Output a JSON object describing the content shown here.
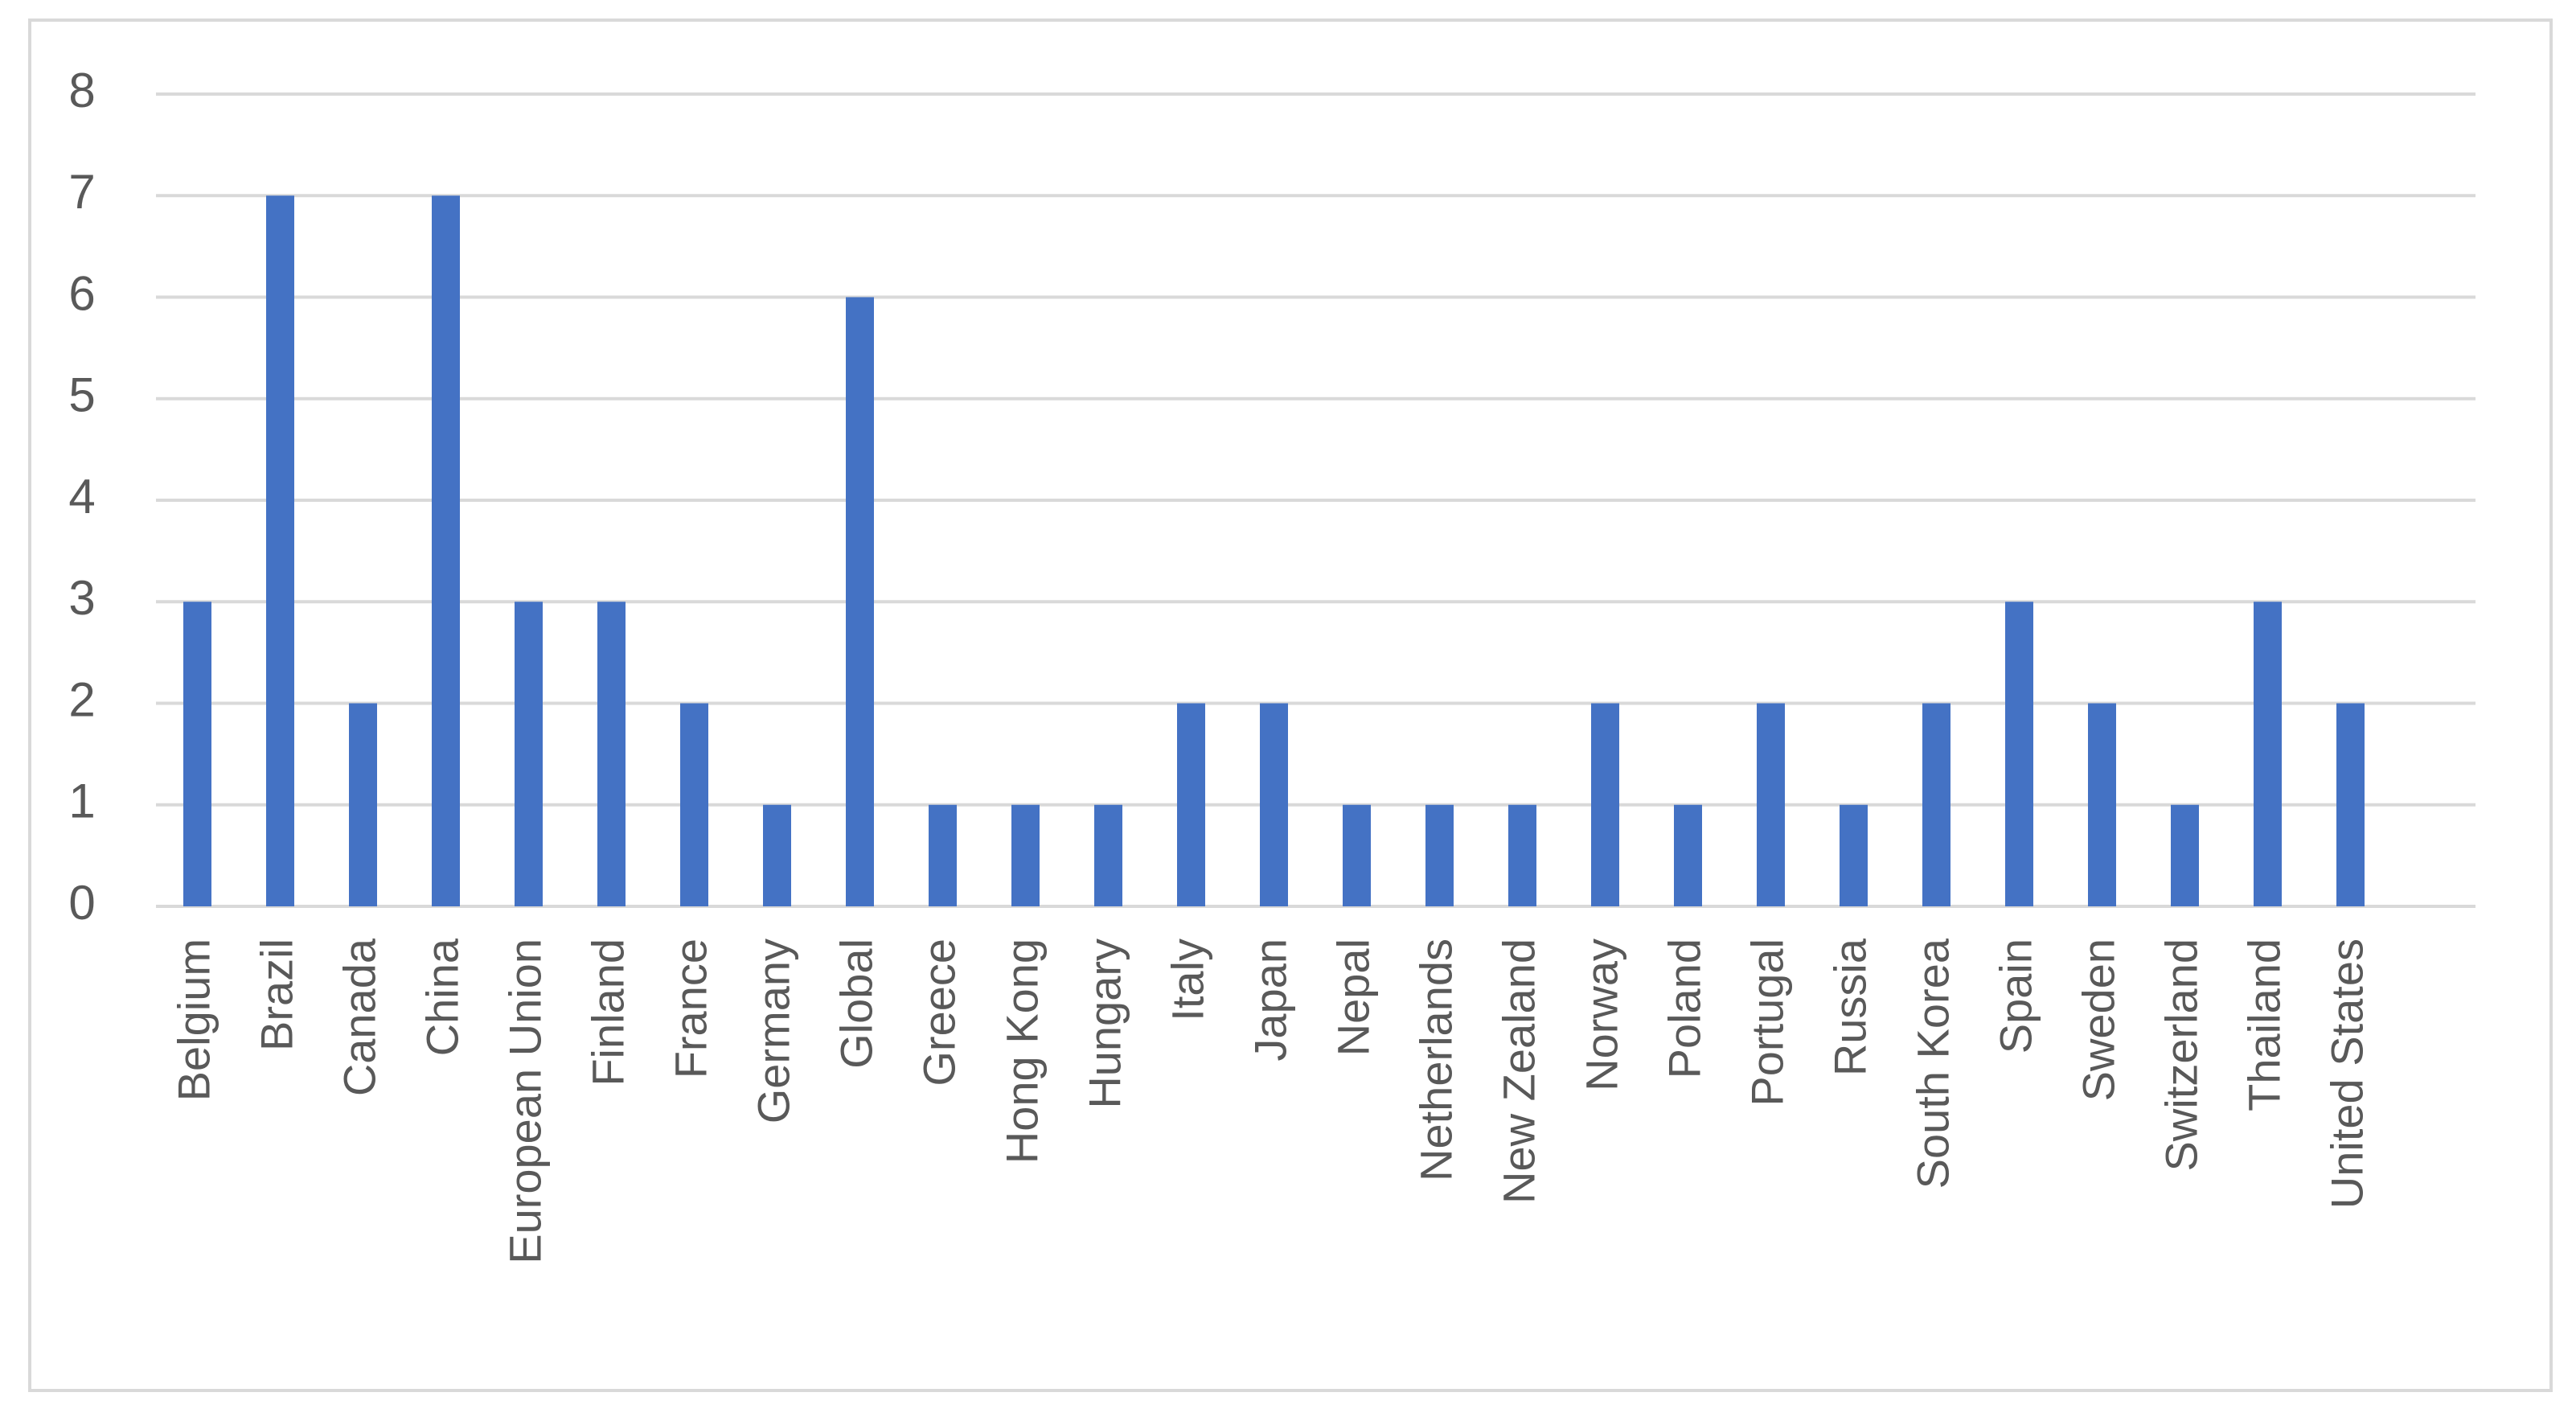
{
  "chart_data": {
    "type": "bar",
    "categories": [
      "Belgium",
      "Brazil",
      "Canada",
      "China",
      "European Union",
      "Finland",
      "France",
      "Germany",
      "Global",
      "Greece",
      "Hong Kong",
      "Hungary",
      "Italy",
      "Japan",
      "Nepal",
      "Netherlands",
      "New Zealand",
      "Norway",
      "Poland",
      "Portugal",
      "Russia",
      "South Korea",
      "Spain",
      "Sweden",
      "Switzerland",
      "Thailand",
      "United States"
    ],
    "values": [
      3,
      7,
      2,
      7,
      3,
      3,
      2,
      1,
      6,
      1,
      1,
      1,
      2,
      2,
      1,
      1,
      1,
      2,
      1,
      2,
      1,
      2,
      3,
      2,
      1,
      3,
      2
    ],
    "color": "#4472c4",
    "ylim": [
      0,
      8
    ],
    "yticks": [
      0,
      1,
      2,
      3,
      4,
      5,
      6,
      7,
      8
    ],
    "grid": true
  }
}
